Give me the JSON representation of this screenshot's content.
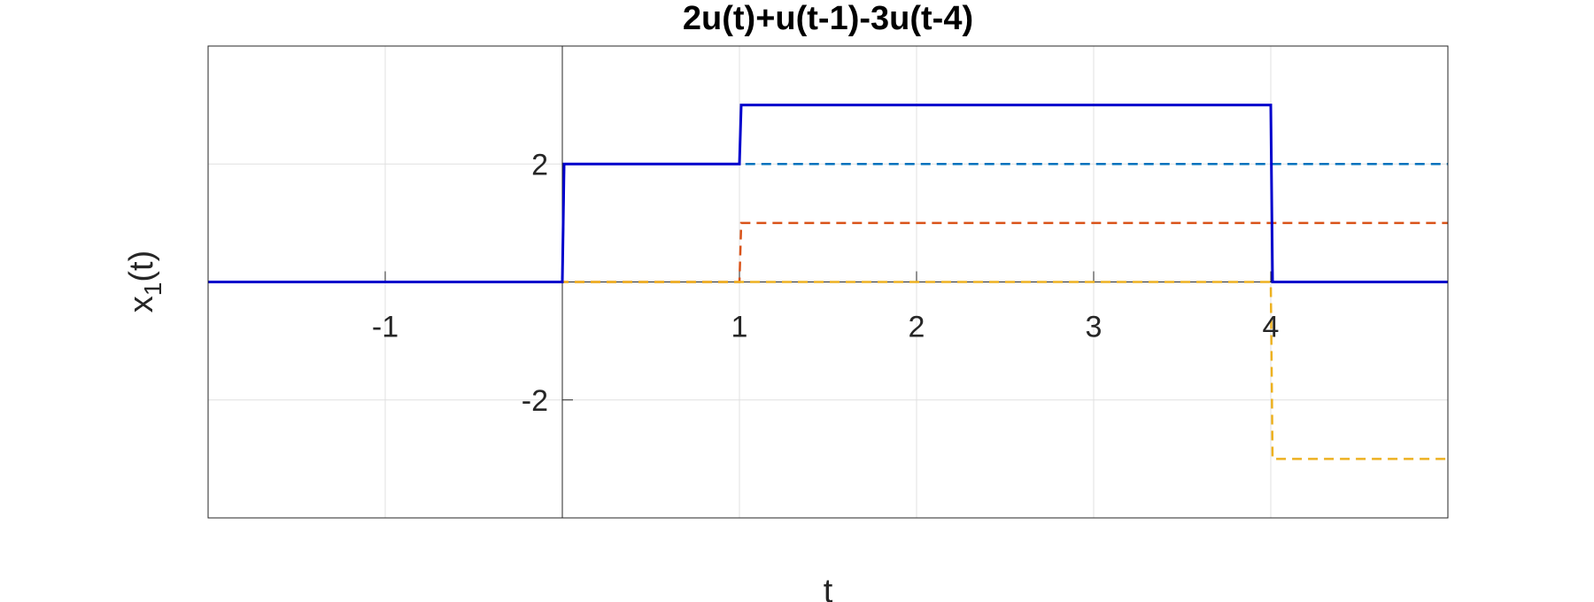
{
  "chart_data": {
    "type": "line",
    "title": "2u(t)+u(t-1)-3u(t-4)",
    "xlabel": "t",
    "ylabel": {
      "base": "x",
      "subscript": "1",
      "suffix": "(t)"
    },
    "xlim": [
      -2,
      5
    ],
    "ylim": [
      -4,
      4
    ],
    "x_ticks": [
      -1,
      1,
      2,
      3,
      4
    ],
    "y_ticks": [
      -2,
      2
    ],
    "grid": true,
    "axes_location": "origin",
    "series": [
      {
        "color": "#0000cc",
        "style": "solid",
        "x": [
          -2,
          0,
          0.01,
          1,
          1.01,
          4,
          4.01,
          5
        ],
        "y": [
          0,
          0,
          2,
          2,
          3,
          3,
          0,
          0
        ]
      },
      {
        "color": "#0072bd",
        "style": "dashed",
        "x": [
          -2,
          0,
          0.01,
          5
        ],
        "y": [
          0,
          0,
          2,
          2
        ]
      },
      {
        "color": "#d95319",
        "style": "dashed",
        "x": [
          -2,
          1,
          1.01,
          5
        ],
        "y": [
          0,
          0,
          1,
          1
        ]
      },
      {
        "color": "#edb120",
        "style": "dashed",
        "x": [
          -2,
          4,
          4.01,
          5
        ],
        "y": [
          0,
          0,
          -3,
          -3
        ]
      }
    ]
  }
}
